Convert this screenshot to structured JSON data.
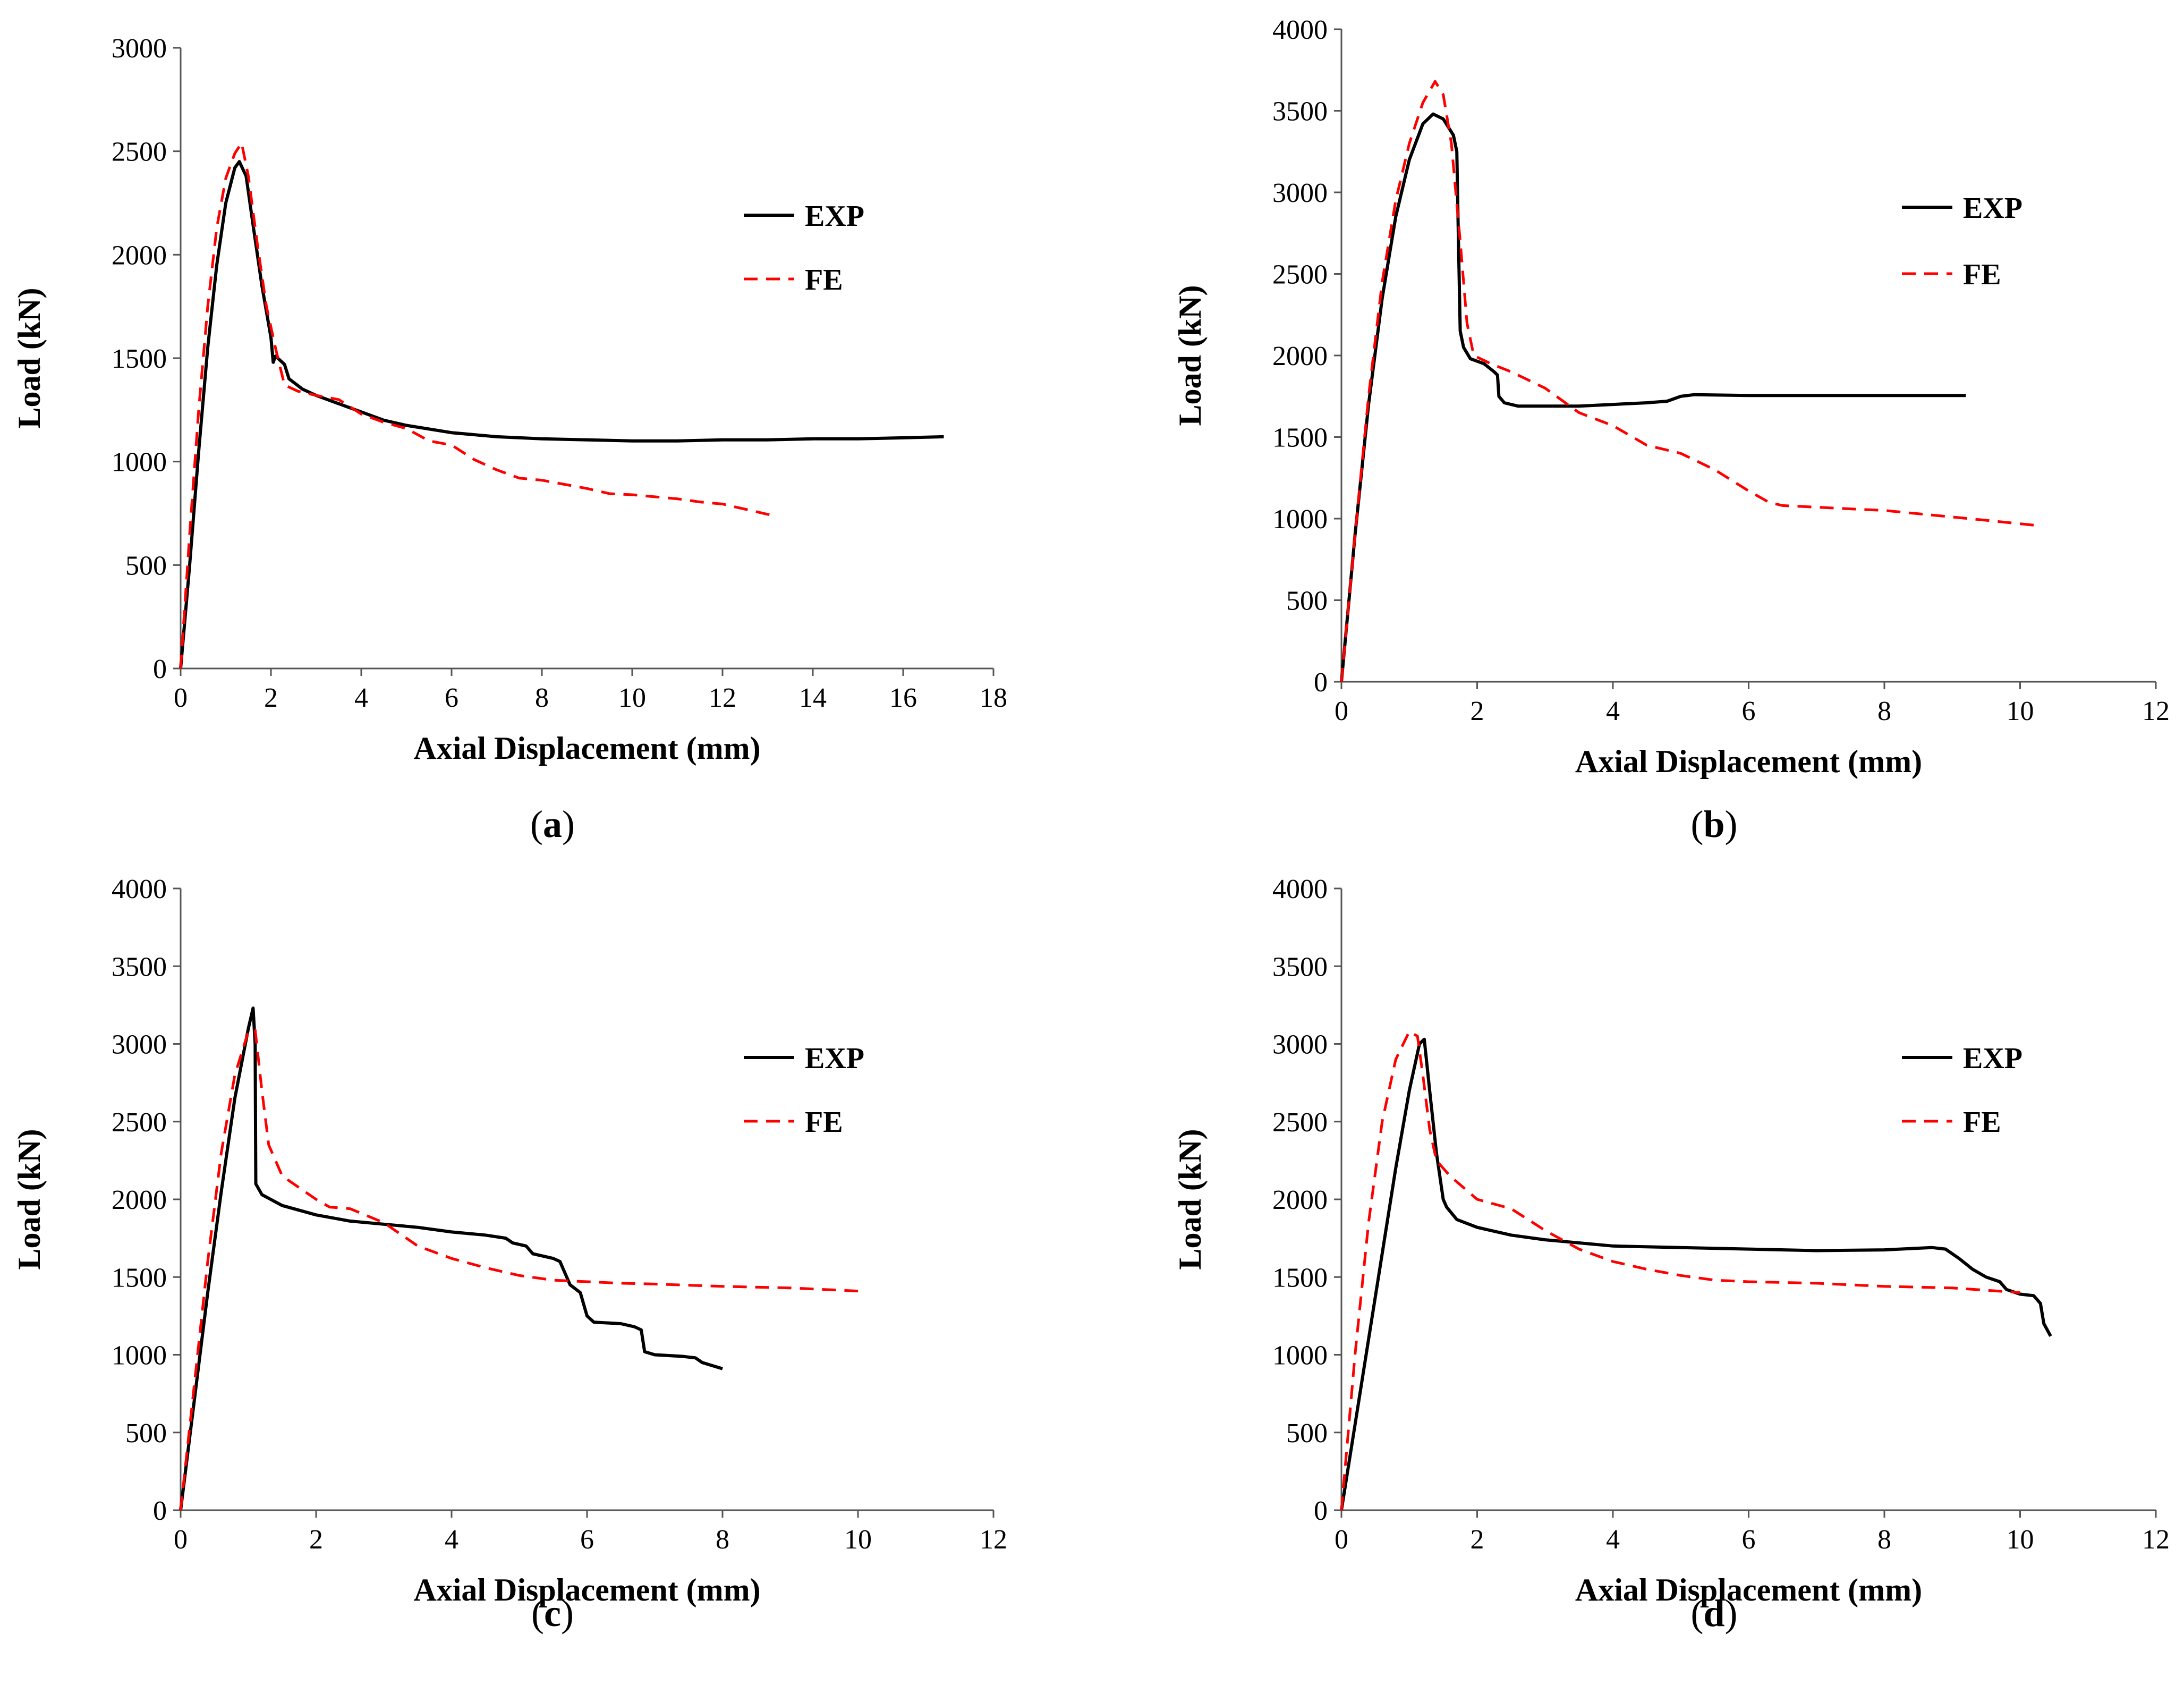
{
  "colors": {
    "exp": "#000000",
    "fe": "#ff0000",
    "axis": "#555555"
  },
  "chart_data": [
    {
      "type": "line",
      "caption_letter": "a",
      "xlabel": "Axial Displacement (mm)",
      "ylabel": "Load (kN)",
      "xlim": [
        0,
        18
      ],
      "ylim": [
        0,
        3000
      ],
      "xticks": [
        0,
        2,
        4,
        6,
        8,
        10,
        12,
        14,
        16,
        18
      ],
      "yticks": [
        0,
        500,
        1000,
        1500,
        2000,
        2500,
        3000
      ],
      "grid": false,
      "legend_position": "right",
      "series": [
        {
          "name": "EXP",
          "style": "solid",
          "points": [
            [
              0,
              0
            ],
            [
              0.2,
              500
            ],
            [
              0.4,
              1050
            ],
            [
              0.6,
              1550
            ],
            [
              0.8,
              1950
            ],
            [
              1.0,
              2250
            ],
            [
              1.2,
              2420
            ],
            [
              1.3,
              2450
            ],
            [
              1.45,
              2380
            ],
            [
              1.6,
              2150
            ],
            [
              1.8,
              1850
            ],
            [
              2.0,
              1600
            ],
            [
              2.05,
              1480
            ],
            [
              2.1,
              1510
            ],
            [
              2.3,
              1470
            ],
            [
              2.4,
              1400
            ],
            [
              2.7,
              1350
            ],
            [
              3.0,
              1320
            ],
            [
              3.5,
              1280
            ],
            [
              4.0,
              1240
            ],
            [
              4.5,
              1200
            ],
            [
              5.0,
              1175
            ],
            [
              6.0,
              1140
            ],
            [
              7.0,
              1120
            ],
            [
              8.0,
              1110
            ],
            [
              9.0,
              1105
            ],
            [
              10.0,
              1100
            ],
            [
              11.0,
              1100
            ],
            [
              12.0,
              1105
            ],
            [
              13.0,
              1105
            ],
            [
              14.0,
              1110
            ],
            [
              15.0,
              1110
            ],
            [
              16.0,
              1115
            ],
            [
              16.9,
              1120
            ]
          ]
        },
        {
          "name": "FE",
          "style": "dashed",
          "points": [
            [
              0,
              0
            ],
            [
              0.2,
              650
            ],
            [
              0.4,
              1250
            ],
            [
              0.6,
              1750
            ],
            [
              0.8,
              2130
            ],
            [
              1.0,
              2370
            ],
            [
              1.2,
              2490
            ],
            [
              1.35,
              2540
            ],
            [
              1.5,
              2380
            ],
            [
              1.7,
              2050
            ],
            [
              1.9,
              1750
            ],
            [
              2.1,
              1550
            ],
            [
              2.3,
              1370
            ],
            [
              2.6,
              1340
            ],
            [
              3.0,
              1320
            ],
            [
              3.5,
              1300
            ],
            [
              4.0,
              1230
            ],
            [
              4.5,
              1190
            ],
            [
              5.0,
              1160
            ],
            [
              5.5,
              1100
            ],
            [
              6.0,
              1080
            ],
            [
              6.5,
              1010
            ],
            [
              7.0,
              960
            ],
            [
              7.5,
              920
            ],
            [
              8.0,
              910
            ],
            [
              8.5,
              890
            ],
            [
              9.0,
              870
            ],
            [
              9.5,
              845
            ],
            [
              10.0,
              840
            ],
            [
              10.5,
              830
            ],
            [
              11.0,
              820
            ],
            [
              11.5,
              805
            ],
            [
              12.0,
              795
            ],
            [
              12.5,
              770
            ],
            [
              13.2,
              735
            ]
          ]
        }
      ]
    },
    {
      "type": "line",
      "caption_letter": "b",
      "xlabel": "Axial Displacement (mm)",
      "ylabel": "Load (kN)",
      "xlim": [
        0,
        12
      ],
      "ylim": [
        0,
        4000
      ],
      "xticks": [
        0,
        2,
        4,
        6,
        8,
        10,
        12
      ],
      "yticks": [
        0,
        500,
        1000,
        1500,
        2000,
        2500,
        3000,
        3500,
        4000
      ],
      "grid": false,
      "legend_position": "right",
      "series": [
        {
          "name": "EXP",
          "style": "solid",
          "points": [
            [
              0,
              0
            ],
            [
              0.2,
              900
            ],
            [
              0.4,
              1700
            ],
            [
              0.6,
              2350
            ],
            [
              0.8,
              2850
            ],
            [
              1.0,
              3200
            ],
            [
              1.2,
              3420
            ],
            [
              1.35,
              3480
            ],
            [
              1.5,
              3450
            ],
            [
              1.65,
              3350
            ],
            [
              1.7,
              3250
            ],
            [
              1.72,
              2800
            ],
            [
              1.75,
              2150
            ],
            [
              1.8,
              2050
            ],
            [
              1.9,
              1980
            ],
            [
              2.1,
              1950
            ],
            [
              2.25,
              1900
            ],
            [
              2.3,
              1880
            ],
            [
              2.32,
              1750
            ],
            [
              2.4,
              1710
            ],
            [
              2.6,
              1690
            ],
            [
              3.0,
              1690
            ],
            [
              3.5,
              1690
            ],
            [
              4.0,
              1700
            ],
            [
              4.5,
              1710
            ],
            [
              4.8,
              1720
            ],
            [
              5.0,
              1750
            ],
            [
              5.2,
              1760
            ],
            [
              6.0,
              1755
            ],
            [
              7.0,
              1755
            ],
            [
              8.0,
              1755
            ],
            [
              9.2,
              1755
            ]
          ]
        },
        {
          "name": "FE",
          "style": "dashed",
          "points": [
            [
              0,
              0
            ],
            [
              0.2,
              900
            ],
            [
              0.4,
              1750
            ],
            [
              0.6,
              2450
            ],
            [
              0.8,
              2950
            ],
            [
              1.0,
              3300
            ],
            [
              1.2,
              3550
            ],
            [
              1.38,
              3680
            ],
            [
              1.5,
              3600
            ],
            [
              1.62,
              3300
            ],
            [
              1.75,
              2700
            ],
            [
              1.85,
              2200
            ],
            [
              1.95,
              2000
            ],
            [
              2.2,
              1950
            ],
            [
              2.5,
              1900
            ],
            [
              3.0,
              1800
            ],
            [
              3.5,
              1650
            ],
            [
              4.0,
              1570
            ],
            [
              4.5,
              1450
            ],
            [
              5.0,
              1400
            ],
            [
              5.5,
              1300
            ],
            [
              6.0,
              1170
            ],
            [
              6.3,
              1100
            ],
            [
              6.5,
              1080
            ],
            [
              7.0,
              1070
            ],
            [
              7.5,
              1060
            ],
            [
              8.0,
              1050
            ],
            [
              8.5,
              1030
            ],
            [
              9.0,
              1010
            ],
            [
              9.5,
              990
            ],
            [
              10.2,
              960
            ]
          ]
        }
      ]
    },
    {
      "type": "line",
      "caption_letter": "c",
      "xlabel": "Axial Displacement (mm)",
      "ylabel": "Load (kN)",
      "xlim": [
        0,
        12
      ],
      "ylim": [
        0,
        4000
      ],
      "xticks": [
        0,
        2,
        4,
        6,
        8,
        10,
        12
      ],
      "yticks": [
        0,
        500,
        1000,
        1500,
        2000,
        2500,
        3000,
        3500,
        4000
      ],
      "grid": false,
      "legend_position": "right",
      "series": [
        {
          "name": "EXP",
          "style": "solid",
          "points": [
            [
              0,
              0
            ],
            [
              0.2,
              700
            ],
            [
              0.4,
              1400
            ],
            [
              0.6,
              2050
            ],
            [
              0.8,
              2650
            ],
            [
              1.0,
              3100
            ],
            [
              1.07,
              3230
            ],
            [
              1.1,
              3000
            ],
            [
              1.11,
              2100
            ],
            [
              1.2,
              2030
            ],
            [
              1.5,
              1960
            ],
            [
              2.0,
              1900
            ],
            [
              2.5,
              1860
            ],
            [
              3.0,
              1840
            ],
            [
              3.5,
              1820
            ],
            [
              4.0,
              1790
            ],
            [
              4.5,
              1770
            ],
            [
              4.8,
              1750
            ],
            [
              4.9,
              1720
            ],
            [
              5.1,
              1700
            ],
            [
              5.2,
              1650
            ],
            [
              5.5,
              1620
            ],
            [
              5.6,
              1600
            ],
            [
              5.75,
              1450
            ],
            [
              5.9,
              1400
            ],
            [
              6.0,
              1250
            ],
            [
              6.1,
              1210
            ],
            [
              6.5,
              1200
            ],
            [
              6.7,
              1180
            ],
            [
              6.8,
              1160
            ],
            [
              6.85,
              1020
            ],
            [
              7.0,
              1000
            ],
            [
              7.4,
              990
            ],
            [
              7.6,
              980
            ],
            [
              7.7,
              950
            ],
            [
              8.0,
              910
            ]
          ]
        },
        {
          "name": "FE",
          "style": "dashed",
          "points": [
            [
              0,
              0
            ],
            [
              0.2,
              800
            ],
            [
              0.4,
              1600
            ],
            [
              0.6,
              2300
            ],
            [
              0.8,
              2800
            ],
            [
              1.0,
              3080
            ],
            [
              1.1,
              3090
            ],
            [
              1.2,
              2700
            ],
            [
              1.3,
              2350
            ],
            [
              1.5,
              2150
            ],
            [
              2.0,
              2000
            ],
            [
              2.2,
              1950
            ],
            [
              2.5,
              1940
            ],
            [
              3.0,
              1850
            ],
            [
              3.5,
              1700
            ],
            [
              4.0,
              1620
            ],
            [
              4.5,
              1560
            ],
            [
              5.0,
              1510
            ],
            [
              5.5,
              1480
            ],
            [
              6.0,
              1470
            ],
            [
              6.5,
              1460
            ],
            [
              7.0,
              1455
            ],
            [
              8.0,
              1440
            ],
            [
              9.0,
              1430
            ],
            [
              10.0,
              1410
            ]
          ]
        }
      ]
    },
    {
      "type": "line",
      "caption_letter": "d",
      "xlabel": "Axial Displacement (mm)",
      "ylabel": "Load (kN)",
      "xlim": [
        0,
        12
      ],
      "ylim": [
        0,
        4000
      ],
      "xticks": [
        0,
        2,
        4,
        6,
        8,
        10,
        12
      ],
      "yticks": [
        0,
        500,
        1000,
        1500,
        2000,
        2500,
        3000,
        3500,
        4000
      ],
      "grid": false,
      "legend_position": "right",
      "series": [
        {
          "name": "EXP",
          "style": "solid",
          "points": [
            [
              0,
              0
            ],
            [
              0.2,
              550
            ],
            [
              0.4,
              1100
            ],
            [
              0.6,
              1650
            ],
            [
              0.8,
              2200
            ],
            [
              1.0,
              2700
            ],
            [
              1.15,
              3000
            ],
            [
              1.22,
              3030
            ],
            [
              1.3,
              2700
            ],
            [
              1.4,
              2300
            ],
            [
              1.5,
              2000
            ],
            [
              1.55,
              1950
            ],
            [
              1.7,
              1870
            ],
            [
              2.0,
              1820
            ],
            [
              2.5,
              1770
            ],
            [
              3.0,
              1740
            ],
            [
              4.0,
              1700
            ],
            [
              5.0,
              1690
            ],
            [
              6.0,
              1680
            ],
            [
              7.0,
              1670
            ],
            [
              8.0,
              1675
            ],
            [
              8.7,
              1690
            ],
            [
              8.9,
              1680
            ],
            [
              9.1,
              1620
            ],
            [
              9.3,
              1550
            ],
            [
              9.5,
              1500
            ],
            [
              9.7,
              1470
            ],
            [
              9.8,
              1420
            ],
            [
              10.0,
              1390
            ],
            [
              10.2,
              1380
            ],
            [
              10.3,
              1330
            ],
            [
              10.35,
              1200
            ],
            [
              10.45,
              1120
            ]
          ]
        },
        {
          "name": "FE",
          "style": "dashed",
          "points": [
            [
              0,
              0
            ],
            [
              0.2,
              1000
            ],
            [
              0.4,
              1850
            ],
            [
              0.6,
              2500
            ],
            [
              0.8,
              2900
            ],
            [
              1.0,
              3080
            ],
            [
              1.12,
              3050
            ],
            [
              1.2,
              2800
            ],
            [
              1.3,
              2450
            ],
            [
              1.4,
              2250
            ],
            [
              1.6,
              2150
            ],
            [
              2.0,
              2000
            ],
            [
              2.5,
              1940
            ],
            [
              3.0,
              1800
            ],
            [
              3.5,
              1680
            ],
            [
              4.0,
              1600
            ],
            [
              4.5,
              1550
            ],
            [
              5.0,
              1510
            ],
            [
              5.5,
              1480
            ],
            [
              6.0,
              1470
            ],
            [
              7.0,
              1460
            ],
            [
              8.0,
              1440
            ],
            [
              9.0,
              1430
            ],
            [
              10.0,
              1400
            ]
          ]
        }
      ]
    }
  ]
}
